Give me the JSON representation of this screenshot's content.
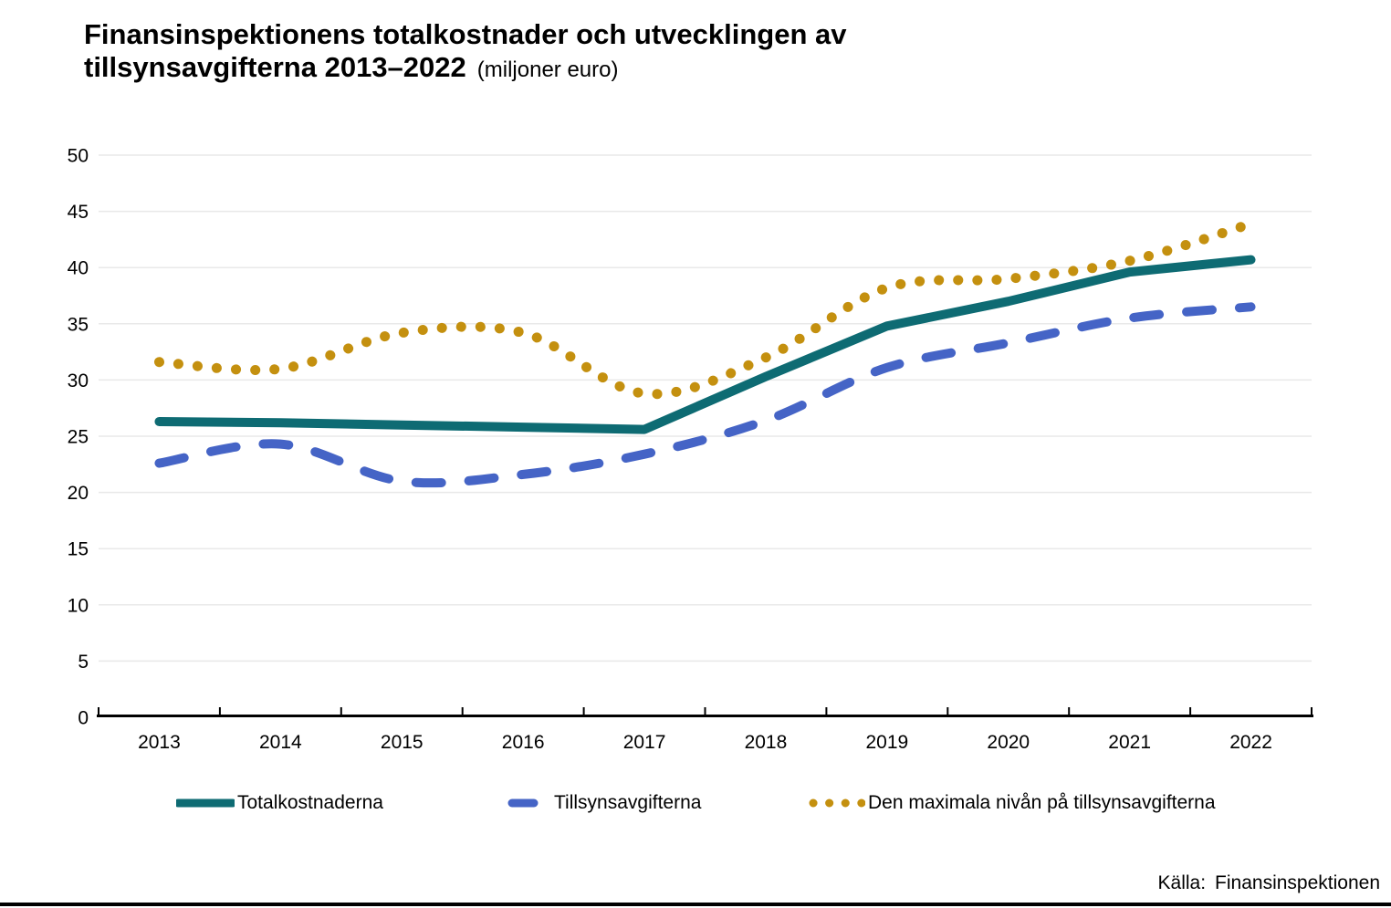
{
  "header": {
    "title_line1": "Finansinspektionens totalkostnader och utvecklingen av",
    "title_line2": "tillsynsavgifterna 2013–2022",
    "unit": "(miljoner euro)"
  },
  "chart_data": {
    "type": "line",
    "categories": [
      "2013",
      "2014",
      "2015",
      "2016",
      "2017",
      "2018",
      "2019",
      "2020",
      "2021",
      "2022"
    ],
    "series": [
      {
        "name": "Totalkostnaderna",
        "color": "#0E6B73",
        "style": "solid",
        "smooth": false,
        "values": [
          26.3,
          26.2,
          26.0,
          25.8,
          25.6,
          30.3,
          34.8,
          37.0,
          39.6,
          40.7
        ]
      },
      {
        "name": "Tillsynsavgifterna",
        "color": "#4564C6",
        "style": "dashed",
        "smooth": true,
        "values": [
          22.6,
          24.3,
          21.0,
          21.6,
          23.4,
          26.4,
          31.1,
          33.3,
          35.5,
          36.5
        ]
      },
      {
        "name": "Den maximala nivån på tillsynsavgifterna",
        "color": "#C4900F",
        "style": "dotted",
        "smooth": true,
        "values": [
          31.6,
          31.0,
          34.2,
          34.2,
          28.8,
          32.0,
          38.2,
          39.0,
          40.6,
          43.9
        ]
      }
    ],
    "ylim": [
      0,
      50
    ],
    "ytick_step": 5,
    "grid": "horizontal",
    "gridline_color": "#E9E9E9",
    "axis_color": "#000000",
    "legend_position": "bottom"
  },
  "source": {
    "label": "Källa:",
    "value": "Finansinspektionen"
  }
}
